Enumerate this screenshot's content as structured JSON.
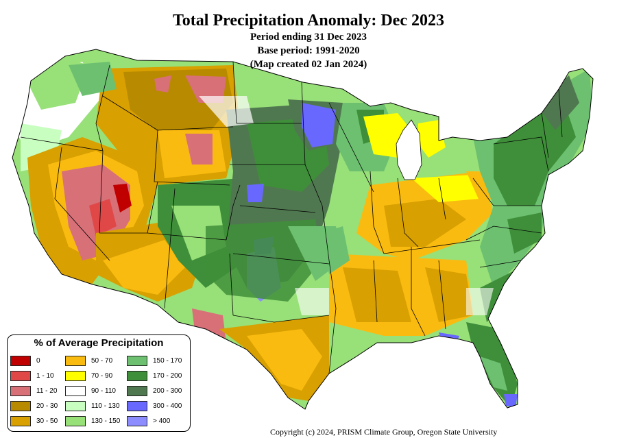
{
  "title": "Total Precipitation Anomaly: Dec 2023",
  "subtitle_lines": [
    "Period ending 31 Dec 2023",
    "Base period: 1991-2020",
    "(Map created 02 Jan 2024)"
  ],
  "legend": {
    "title": "% of Average Precipitation",
    "classes": [
      {
        "label": "0",
        "color": "#c00000"
      },
      {
        "label": "1 - 10",
        "color": "#e04848"
      },
      {
        "label": "11 - 20",
        "color": "#d87078"
      },
      {
        "label": "20 - 30",
        "color": "#b88a00"
      },
      {
        "label": "30 - 50",
        "color": "#d8a000"
      },
      {
        "label": "50 - 70",
        "color": "#fabb10"
      },
      {
        "label": "70 - 90",
        "color": "#ffff00"
      },
      {
        "label": "90 - 110",
        "color": "#ffffff"
      },
      {
        "label": "110 - 130",
        "color": "#c8ffc0"
      },
      {
        "label": "130 - 150",
        "color": "#98e078"
      },
      {
        "label": "150 - 170",
        "color": "#6cc070"
      },
      {
        "label": "170 - 200",
        "color": "#3f8f3a"
      },
      {
        "label": "200 - 300",
        "color": "#507850"
      },
      {
        "label": "300 - 400",
        "color": "#6868ff"
      },
      {
        "label": "> 400",
        "color": "#8c8cff"
      }
    ]
  },
  "copyright": "Copyright (c) 2024, PRISM Climate Group, Oregon State University"
}
